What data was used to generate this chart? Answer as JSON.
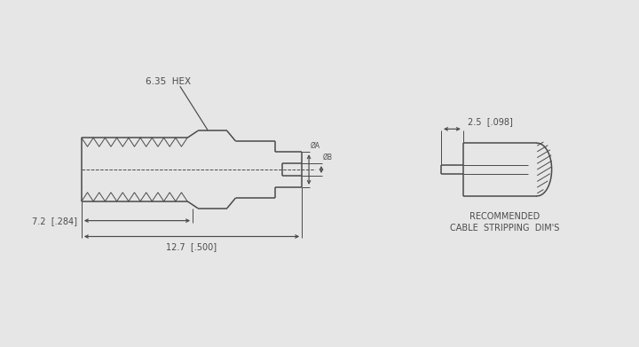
{
  "bg_color": "#e6e6e6",
  "line_color": "#4a4a4a",
  "lw": 1.1,
  "tlw": 0.7,
  "fig_width": 7.2,
  "fig_height": 3.91,
  "dpi": 100,
  "label_hex": "6.35  HEX",
  "label_width_main": "12.7  [.500]",
  "label_width_sub": "7.2  [.284]",
  "label_dim_A": "ØA",
  "label_dim_B": "ØB",
  "label_strip_dim": "2.5  [.098]",
  "label_recommended": "RECOMMENDED",
  "label_cable": "CABLE  STRIPPING  DIM'S",
  "font_size": 7.0,
  "font_family": "DejaVu Sans"
}
